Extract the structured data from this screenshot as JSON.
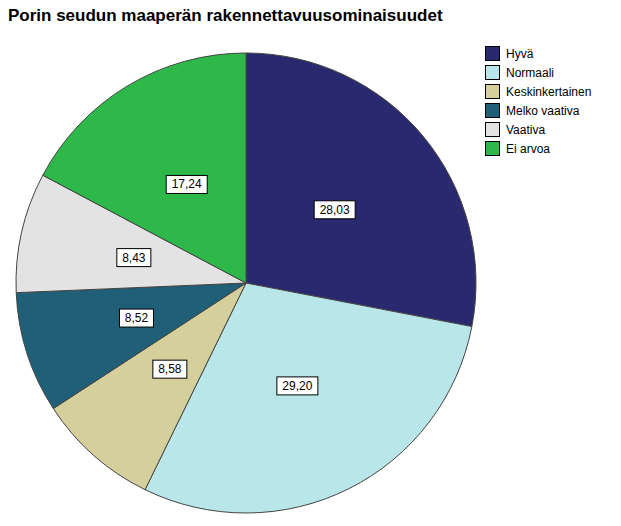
{
  "chart_data": {
    "type": "pie",
    "title": "Porin seudun maaperän rakennettavuusominaisuudet",
    "categories": [
      "Hyvä",
      "Normaali",
      "Keskinkertainen",
      "Melko vaativa",
      "Vaativa",
      "Ei arvoa"
    ],
    "values": [
      28.03,
      29.2,
      8.58,
      8.52,
      8.43,
      17.24
    ],
    "value_labels": [
      "28,03",
      "29,20",
      "8,58",
      "8,52",
      "8,43",
      "17,24"
    ],
    "colors": [
      "#29296f",
      "#b8e6e9",
      "#d4cf9b",
      "#1f5f78",
      "#e3e3e3",
      "#2fb84a"
    ],
    "legend": "top-right",
    "data_labels": true
  }
}
